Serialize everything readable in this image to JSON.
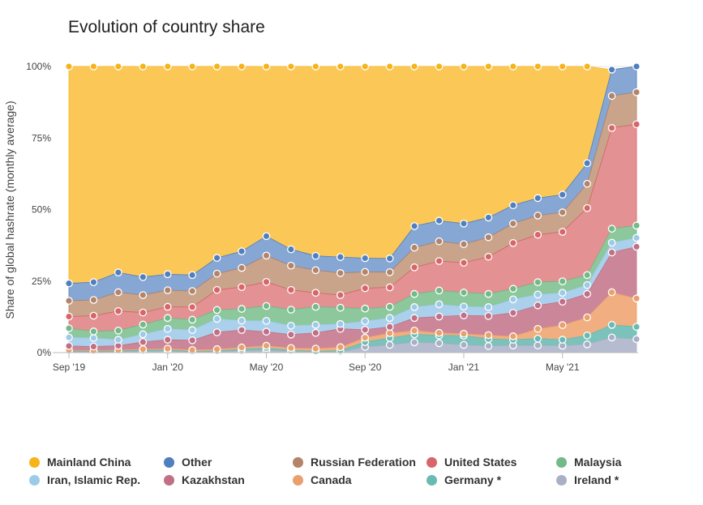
{
  "chart_data": {
    "type": "area",
    "stacked": true,
    "title": "Evolution of country share",
    "ylabel": "Share of global hashrate (monthly average)",
    "xlabel": "",
    "ylim": [
      0,
      100
    ],
    "yticks": [
      "0%",
      "25%",
      "50%",
      "75%",
      "100%"
    ],
    "x": [
      "2019-09",
      "2019-10",
      "2019-11",
      "2019-12",
      "2020-01",
      "2020-02",
      "2020-03",
      "2020-04",
      "2020-05",
      "2020-06",
      "2020-07",
      "2020-08",
      "2020-09",
      "2020-10",
      "2020-11",
      "2020-12",
      "2021-01",
      "2021-02",
      "2021-03",
      "2021-04",
      "2021-05",
      "2021-06",
      "2021-07",
      "2021-08"
    ],
    "xtick_labels": [
      {
        "x": "2019-09",
        "label": "Sep '19"
      },
      {
        "x": "2020-01",
        "label": "Jan '20"
      },
      {
        "x": "2020-05",
        "label": "May '20"
      },
      {
        "x": "2020-09",
        "label": "Sep '20"
      },
      {
        "x": "2021-01",
        "label": "Jan '21"
      },
      {
        "x": "2021-05",
        "label": "May '21"
      }
    ],
    "series": [
      {
        "name": "Ireland *",
        "color": "#b2b8cd",
        "values": [
          0.3,
          0.1,
          0.3,
          0.4,
          0.5,
          0.2,
          0.3,
          0.6,
          0.8,
          0.4,
          0.2,
          0.2,
          2.0,
          2.7,
          3.6,
          3.3,
          2.7,
          2.3,
          2.5,
          2.5,
          2.4,
          2.9,
          5.3,
          4.7
        ]
      },
      {
        "name": "Germany *",
        "color": "#73bfb6",
        "values": [
          0.3,
          0.3,
          0.3,
          0.4,
          0.5,
          0.2,
          0.3,
          0.6,
          0.8,
          0.4,
          0.3,
          0.5,
          1.7,
          2.4,
          2.8,
          2.7,
          3.2,
          2.5,
          2.0,
          2.4,
          2.1,
          3.1,
          4.4,
          4.3
        ]
      },
      {
        "name": "Canada",
        "color": "#efaa7a",
        "values": [
          0.3,
          0.3,
          0.3,
          0.4,
          0.4,
          0.5,
          0.6,
          0.6,
          0.8,
          0.8,
          0.9,
          1.2,
          1.5,
          1.7,
          1.3,
          0.9,
          0.7,
          1.3,
          1.2,
          3.4,
          5.1,
          6.3,
          11.4,
          9.9
        ]
      },
      {
        "name": "Kazakhstan",
        "color": "#c98093",
        "values": [
          1.4,
          1.4,
          1.5,
          2.5,
          3.1,
          3.4,
          5.9,
          6.1,
          4.9,
          4.7,
          5.5,
          6.4,
          2.8,
          2.2,
          4.4,
          5.7,
          6.4,
          6.7,
          8.2,
          8.2,
          8.2,
          8.2,
          13.9,
          18.1
        ]
      },
      {
        "name": "Iran, Islamic Rep.",
        "color": "#a6cdea",
        "values": [
          3.0,
          3.0,
          2.1,
          2.7,
          3.8,
          3.6,
          4.7,
          3.3,
          3.8,
          3.1,
          2.8,
          1.7,
          3.0,
          3.1,
          3.8,
          4.3,
          3.1,
          3.1,
          4.7,
          3.8,
          3.1,
          3.1,
          3.4,
          3.1
        ]
      },
      {
        "name": "Malaysia",
        "color": "#86c596",
        "values": [
          3.2,
          2.3,
          3.2,
          3.4,
          3.8,
          3.6,
          3.1,
          4.1,
          5.2,
          5.6,
          6.3,
          5.7,
          4.4,
          3.9,
          4.6,
          4.8,
          4.9,
          4.6,
          3.7,
          4.3,
          4.0,
          3.5,
          4.9,
          4.3
        ]
      },
      {
        "name": "United States",
        "color": "#e28b8c",
        "values": [
          4.1,
          5.5,
          6.8,
          4.2,
          3.9,
          4.4,
          7.0,
          7.6,
          8.4,
          6.9,
          4.9,
          4.4,
          7.1,
          6.8,
          9.3,
          10.3,
          10.4,
          13.0,
          16.0,
          16.6,
          17.3,
          23.4,
          35.2,
          35.4
        ]
      },
      {
        "name": "Russian Federation",
        "color": "#c69f85",
        "values": [
          5.5,
          5.5,
          6.6,
          6.1,
          5.8,
          5.6,
          5.7,
          6.7,
          9.2,
          8.5,
          7.9,
          7.7,
          5.7,
          5.3,
          6.9,
          6.9,
          6.5,
          6.8,
          6.8,
          6.7,
          6.8,
          8.5,
          11.2,
          11.2
        ]
      },
      {
        "name": "Other",
        "color": "#7fa1d1",
        "values": [
          6.1,
          6.2,
          6.9,
          6.3,
          5.6,
          5.6,
          5.5,
          5.8,
          6.8,
          5.7,
          5.0,
          5.6,
          4.8,
          4.8,
          7.5,
          7.2,
          7.2,
          6.9,
          6.4,
          6.1,
          6.2,
          7.2,
          9.2,
          9.0
        ]
      },
      {
        "name": "Mainland China",
        "color": "#fbc54f",
        "values": [
          75.8,
          75.4,
          72.0,
          73.6,
          72.6,
          72.9,
          66.9,
          64.6,
          59.3,
          63.9,
          66.2,
          66.6,
          67.0,
          67.1,
          55.8,
          53.9,
          54.9,
          52.8,
          48.5,
          46.0,
          44.8,
          33.8,
          0.0,
          0.0
        ]
      }
    ],
    "legend": {
      "position": "bottom",
      "order": [
        "Mainland China",
        "Other",
        "Russian Federation",
        "United States",
        "Malaysia",
        "Iran, Islamic Rep.",
        "Kazakhstan",
        "Canada",
        "Germany *",
        "Ireland *"
      ]
    },
    "marker_colors": {
      "Mainland China": "#f7b41a",
      "Other": "#4f7fbf",
      "Russian Federation": "#b3836a",
      "United States": "#d86569",
      "Malaysia": "#74b98a",
      "Iran, Islamic Rep.": "#9ecae9",
      "Kazakhstan": "#c06f87",
      "Canada": "#e9a06b",
      "Germany *": "#68bbb0",
      "Ireland *": "#a9b0c6"
    },
    "grid": {
      "horizontal": true,
      "vertical": false
    }
  }
}
